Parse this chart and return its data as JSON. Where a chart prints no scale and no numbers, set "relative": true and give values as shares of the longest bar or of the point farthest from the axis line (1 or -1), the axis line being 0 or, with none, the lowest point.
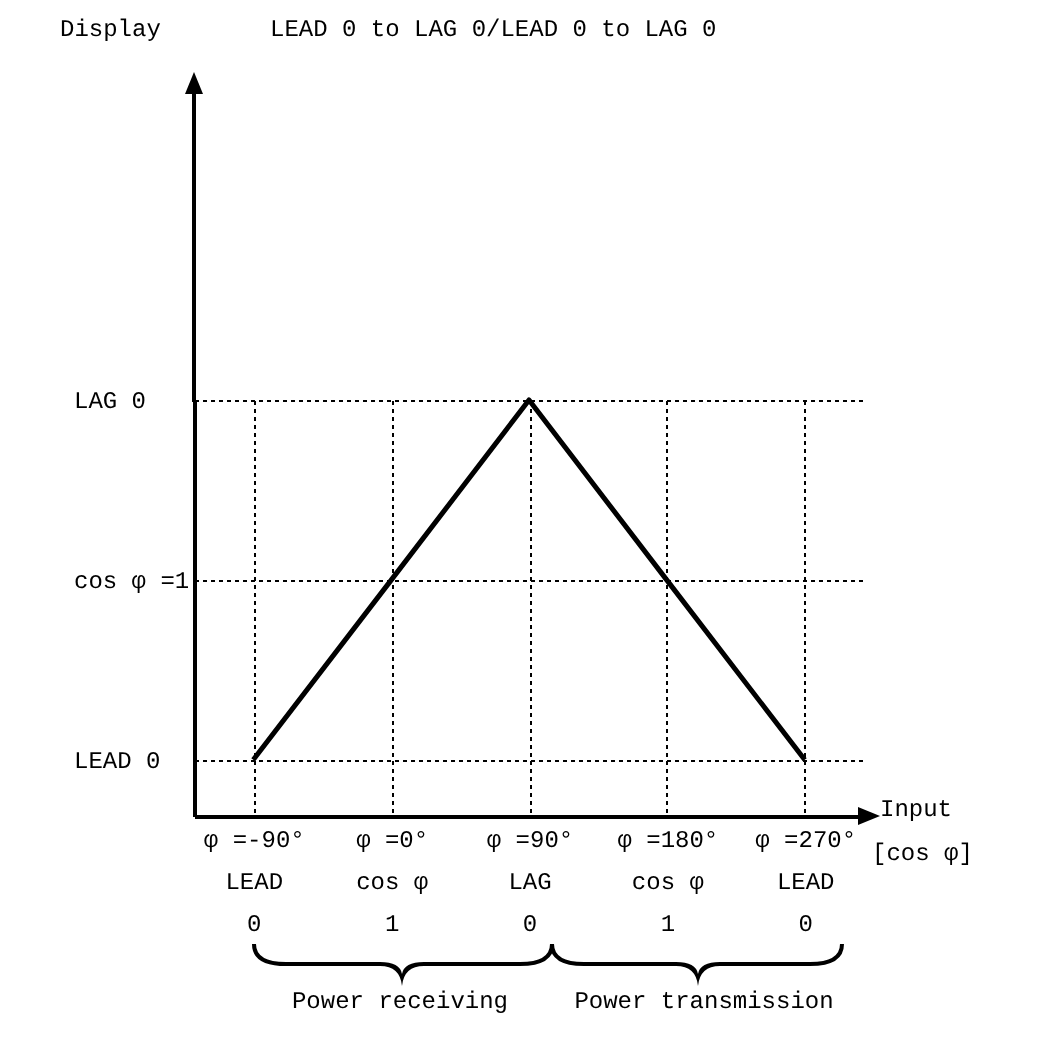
{
  "chart_data": {
    "type": "line",
    "title": "LEAD 0 to LAG 0/LEAD 0 to LAG 0",
    "xlabel": "Input",
    "relative": true,
    "annotations": [
      "Display",
      "[cos φ]",
      "Power receiving",
      "Power transmission",
      "LAG 0",
      "cos φ =1",
      "LEAD 0"
    ],
    "categories": [
      "φ =-90°\nLEAD\n0",
      "φ =0°\ncos φ\n1",
      "φ =90°\nLAG\n0",
      "φ =180°\ncos φ\n1",
      "φ =270°\nLEAD\n0"
    ],
    "series": [
      {
        "color": "#000000",
        "values": [
          0.135,
          0.567,
          1,
          0.567,
          0.135
        ]
      }
    ],
    "grid": true,
    "line_style": "solid",
    "marker": "none"
  }
}
